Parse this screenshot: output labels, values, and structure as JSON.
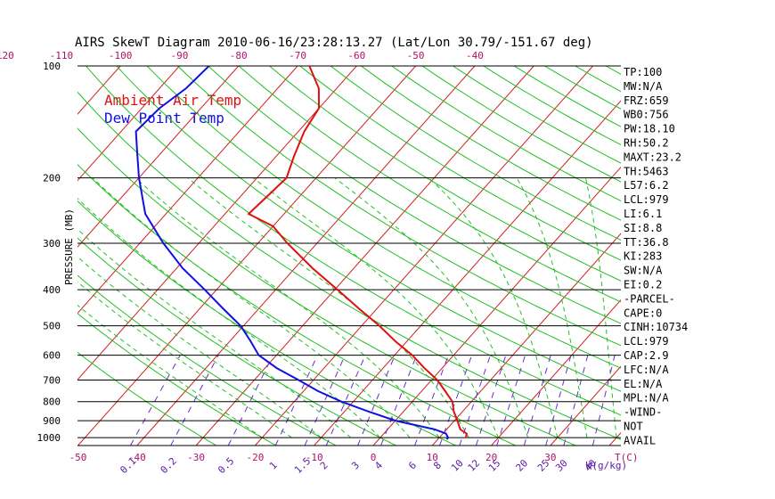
{
  "chart_data": {
    "type": "line",
    "title": "AIRS SkewT Diagram 2010-06-16/23:28:13.27 (Lat/Lon 30.79/-151.67 deg)",
    "ylabel": "PRESSURE (MB)",
    "xlabel": "T(C)",
    "mixing_ratio_unit": "W(g/kg)",
    "pressure_ticks": [
      100,
      200,
      300,
      400,
      500,
      600,
      700,
      800,
      900,
      1000
    ],
    "pressure_range": [
      100,
      1050
    ],
    "bottom_temp_ticks": [
      -50,
      -40,
      -30,
      -20,
      -10,
      0,
      10,
      20,
      30
    ],
    "top_temp_ticks": [
      -120,
      -110,
      -100,
      -90,
      -80,
      -70,
      -60,
      -50,
      -40
    ],
    "mixing_ratio_ticks": [
      "0.1",
      "0.2",
      "0.5",
      "1",
      "1.5",
      "2",
      "3",
      "4",
      "6",
      "8",
      "10",
      "12",
      "15",
      "20",
      "25",
      "30",
      "40"
    ],
    "grid": true,
    "legend": [
      {
        "name": "Ambient Air Temp",
        "color": "#e01010"
      },
      {
        "name": "Dew Point Temp",
        "color": "#1010e0"
      }
    ],
    "series": [
      {
        "name": "Ambient Air Temp",
        "color": "#e01010",
        "points": [
          {
            "p": 1000,
            "t": 14.5
          },
          {
            "p": 975,
            "t": 14.0
          },
          {
            "p": 950,
            "t": 12.3
          },
          {
            "p": 900,
            "t": 10.5
          },
          {
            "p": 850,
            "t": 8.5
          },
          {
            "p": 800,
            "t": 6.8
          },
          {
            "p": 750,
            "t": 4.0
          },
          {
            "p": 700,
            "t": 1.0
          },
          {
            "p": 650,
            "t": -3.0
          },
          {
            "p": 600,
            "t": -7.0
          },
          {
            "p": 550,
            "t": -12.0
          },
          {
            "p": 500,
            "t": -17.0
          },
          {
            "p": 450,
            "t": -23.0
          },
          {
            "p": 400,
            "t": -29.5
          },
          {
            "p": 350,
            "t": -37.0
          },
          {
            "p": 300,
            "t": -45.0
          },
          {
            "p": 270,
            "t": -50.0
          },
          {
            "p": 250,
            "t": -56.0
          },
          {
            "p": 225,
            "t": -55.5
          },
          {
            "p": 200,
            "t": -55.0
          },
          {
            "p": 175,
            "t": -57.0
          },
          {
            "p": 150,
            "t": -59.0
          },
          {
            "p": 130,
            "t": -60.0
          },
          {
            "p": 115,
            "t": -63.0
          },
          {
            "p": 100,
            "t": -68.0
          }
        ]
      },
      {
        "name": "Dew Point Temp",
        "color": "#1010e0",
        "points": [
          {
            "p": 1010,
            "t": 11.5
          },
          {
            "p": 1000,
            "t": 11.5
          },
          {
            "p": 975,
            "t": 10.5
          },
          {
            "p": 950,
            "t": 8.0
          },
          {
            "p": 925,
            "t": 4.0
          },
          {
            "p": 900,
            "t": 0.0
          },
          {
            "p": 850,
            "t": -6.0
          },
          {
            "p": 800,
            "t": -12.0
          },
          {
            "p": 750,
            "t": -17.5
          },
          {
            "p": 700,
            "t": -22.5
          },
          {
            "p": 650,
            "t": -28.0
          },
          {
            "p": 600,
            "t": -33.0
          },
          {
            "p": 550,
            "t": -36.5
          },
          {
            "p": 500,
            "t": -40.5
          },
          {
            "p": 450,
            "t": -46.0
          },
          {
            "p": 400,
            "t": -52.0
          },
          {
            "p": 350,
            "t": -59.0
          },
          {
            "p": 300,
            "t": -66.0
          },
          {
            "p": 250,
            "t": -73.5
          },
          {
            "p": 200,
            "t": -80.0
          },
          {
            "p": 175,
            "t": -83.5
          },
          {
            "p": 150,
            "t": -87.5
          },
          {
            "p": 130,
            "t": -87.0
          },
          {
            "p": 115,
            "t": -85.5
          },
          {
            "p": 100,
            "t": -85.0
          }
        ]
      }
    ],
    "indices": [
      "TP:100",
      "MW:N/A",
      "FRZ:659",
      "WB0:756",
      "PW:18.10",
      "RH:50.2",
      "MAXT:23.2",
      "TH:5463",
      "L57:6.2",
      "LCL:979",
      "LI:6.1",
      "SI:8.8",
      "TT:36.8",
      "KI:283",
      "SW:N/A",
      "EI:0.2",
      "-PARCEL-",
      "CAPE:0",
      "CINH:10734",
      "LCL:979",
      "CAP:2.9",
      "LFC:N/A",
      "EL:N/A",
      "MPL:N/A",
      "-WIND-",
      "NOT",
      "AVAIL"
    ]
  }
}
